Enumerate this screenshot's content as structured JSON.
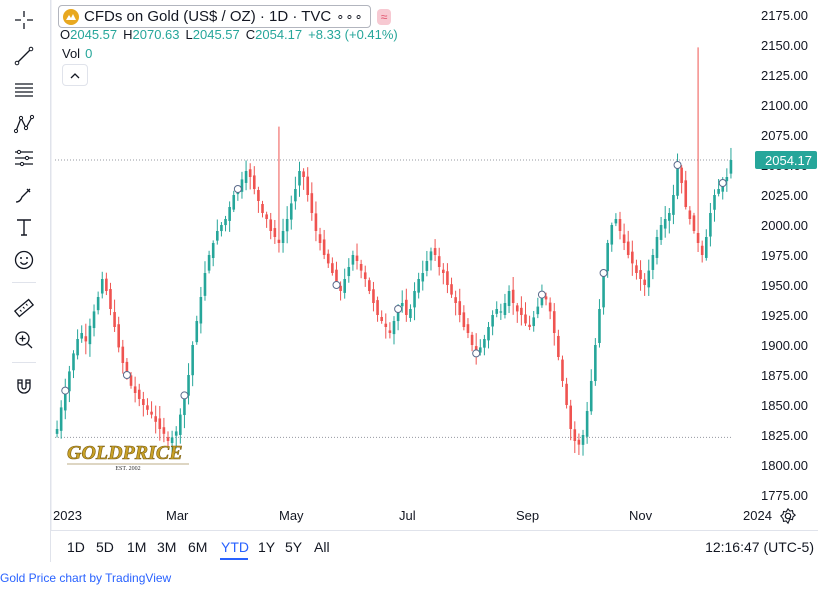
{
  "toolbar": {
    "tools": [
      "crosshair-icon",
      "trend-line-icon",
      "horizontal-lines-icon",
      "pattern-icon",
      "fib-retracement-icon",
      "brush-icon",
      "text-icon",
      "emoji-icon",
      "ruler-icon",
      "zoom-in-icon",
      "magnet-icon"
    ]
  },
  "header": {
    "symbol_title": "CFDs on Gold (US$ / OZ) · 1D · TVC",
    "more_label": "∘∘∘",
    "badge_label": "≈"
  },
  "ohlc": {
    "o_label": "O",
    "o_value": "2045.57",
    "h_label": "H",
    "h_value": "2070.63",
    "l_label": "L",
    "l_value": "2045.57",
    "c_label": "C",
    "c_value": "2054.17",
    "change": "+8.33 (+0.41%)"
  },
  "volume": {
    "label": "Vol",
    "value": "0"
  },
  "ranges": {
    "items": [
      "1D",
      "5D",
      "1M",
      "3M",
      "6M",
      "YTD",
      "1Y",
      "5Y",
      "All"
    ],
    "active": "YTD"
  },
  "clock": "12:16:47 (UTC-5)",
  "footer": "Gold Price chart by TradingView",
  "watermark": "GOLDPRICE",
  "watermark_sub": "EST. 2002",
  "colors": {
    "up": "#26a69a",
    "down": "#ef5350",
    "price_tag": "#26a69a",
    "accent": "#2962ff"
  },
  "chart_data": {
    "type": "candlestick",
    "ylim": [
      1775,
      2175
    ],
    "y_ticks": [
      1775,
      1800,
      1825,
      1850,
      1875,
      1900,
      1925,
      1950,
      1975,
      2000,
      2025,
      2050,
      2075,
      2100,
      2125,
      2150,
      2175
    ],
    "x_tick_labels": [
      "2023",
      "Mar",
      "May",
      "Jul",
      "Sep",
      "Nov",
      "2024"
    ],
    "last_price": "2054.17",
    "last_value": 2054.17,
    "reference_line_high": 2054.17,
    "reference_line_low": 1823,
    "closes": [
      1830,
      1848,
      1862,
      1878,
      1893,
      1905,
      1910,
      1903,
      1916,
      1928,
      1940,
      1955,
      1945,
      1930,
      1915,
      1898,
      1885,
      1875,
      1866,
      1860,
      1855,
      1850,
      1846,
      1842,
      1836,
      1830,
      1826,
      1820,
      1823,
      1828,
      1842,
      1858,
      1875,
      1900,
      1920,
      1940,
      1960,
      1975,
      1985,
      1995,
      2000,
      2005,
      2015,
      2025,
      2030,
      2038,
      2045,
      2040,
      2030,
      2020,
      2010,
      2005,
      1995,
      1990,
      1985,
      1995,
      2005,
      2018,
      2030,
      2045,
      2040,
      2025,
      2010,
      1995,
      1985,
      1975,
      1968,
      1960,
      1950,
      1945,
      1955,
      1965,
      1975,
      1970,
      1962,
      1955,
      1945,
      1935,
      1925,
      1920,
      1915,
      1910,
      1920,
      1930,
      1935,
      1925,
      1930,
      1945,
      1955,
      1960,
      1970,
      1978,
      1975,
      1965,
      1960,
      1950,
      1942,
      1935,
      1925,
      1915,
      1910,
      1900,
      1893,
      1898,
      1905,
      1915,
      1925,
      1930,
      1928,
      1935,
      1945,
      1935,
      1928,
      1925,
      1918,
      1915,
      1923,
      1932,
      1942,
      1938,
      1928,
      1910,
      1890,
      1870,
      1850,
      1830,
      1820,
      1817,
      1825,
      1845,
      1870,
      1900,
      1930,
      1960,
      1985,
      2000,
      2005,
      1995,
      1985,
      1975,
      1968,
      1960,
      1955,
      1950,
      1962,
      1975,
      1990,
      2000,
      2005,
      2010,
      2025,
      2050,
      2035,
      2015,
      2005,
      1995,
      1985,
      1975,
      1990,
      2010,
      2025,
      2030,
      2035,
      2040,
      2054.17
    ],
    "highs_extreme": [
      {
        "index": 156,
        "value": 2148
      },
      {
        "index": 54,
        "value": 2082
      }
    ]
  }
}
